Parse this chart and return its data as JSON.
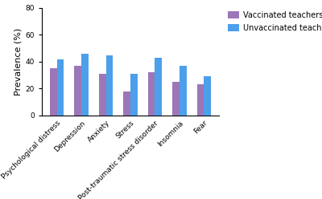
{
  "categories": [
    "Psychological distress",
    "Depression",
    "Anxiety",
    "Stress",
    "Post-traumatic stress disorder",
    "Insomnia",
    "Fear"
  ],
  "vaccinated": [
    35,
    37,
    31,
    18,
    32,
    25,
    23
  ],
  "unvaccinated": [
    42,
    46,
    45,
    31,
    43,
    37,
    29
  ],
  "ylabel": "Prevalence (%)",
  "ylim": [
    0,
    80
  ],
  "yticks": [
    0,
    20,
    40,
    60,
    80
  ],
  "bar_color_vaccinated": "#9b77b8",
  "bar_color_unvaccinated": "#4c9fea",
  "legend_vaccinated": "Vaccinated teachers",
  "legend_unvaccinated": "Unvaccinated teachers",
  "bar_width": 0.28,
  "background_color": "#ffffff",
  "tick_label_fontsize": 6.5,
  "ylabel_fontsize": 8,
  "legend_fontsize": 7
}
